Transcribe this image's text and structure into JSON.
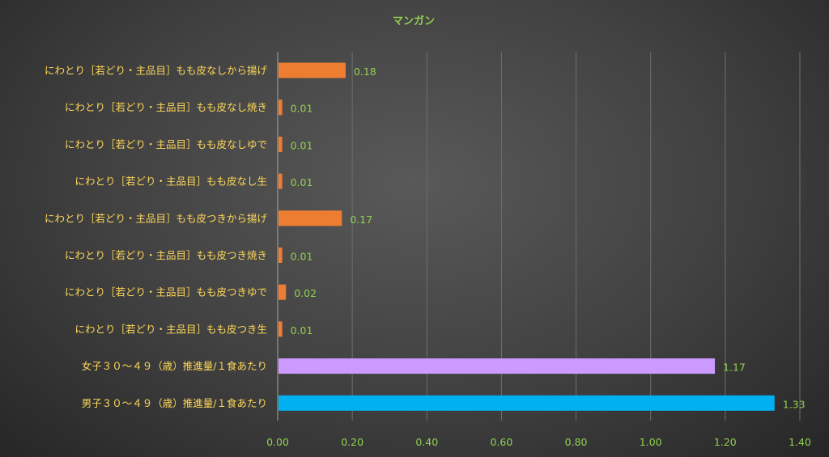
{
  "chart_data": {
    "type": "bar",
    "orientation": "horizontal",
    "title": "マンガン",
    "xlabel": "",
    "ylabel": "",
    "xlim": [
      0,
      1.4
    ],
    "x_ticks": [
      "0.00",
      "0.20",
      "0.40",
      "0.60",
      "0.80",
      "1.00",
      "1.20",
      "1.40"
    ],
    "grid": true,
    "legend": "none",
    "categories": [
      "にわとり［若どり・主品目］もも皮なしから揚げ",
      "にわとり［若どり・主品目］もも皮なし焼き",
      "にわとり［若どり・主品目］もも皮なしゆで",
      "にわとり［若どり・主品目］もも皮なし生",
      "にわとり［若どり・主品目］もも皮つきから揚げ",
      "にわとり［若どり・主品目］もも皮つき焼き",
      "にわとり［若どり・主品目］もも皮つきゆで",
      "にわとり［若どり・主品目］もも皮つき生",
      "女子３０～４９（歳）推進量/１食あたり",
      "男子３０～４９（歳）推進量/１食あたり"
    ],
    "values": [
      0.18,
      0.01,
      0.01,
      0.01,
      0.17,
      0.01,
      0.02,
      0.01,
      1.17,
      1.33
    ],
    "value_labels": [
      "0.18",
      "0.01",
      "0.01",
      "0.01",
      "0.17",
      "0.01",
      "0.02",
      "0.01",
      "1.17",
      "1.33"
    ],
    "colors": [
      "#ed7d31",
      "#ed7d31",
      "#ed7d31",
      "#ed7d31",
      "#ed7d31",
      "#ed7d31",
      "#ed7d31",
      "#ed7d31",
      "#cc99ff",
      "#00b0f0"
    ]
  }
}
